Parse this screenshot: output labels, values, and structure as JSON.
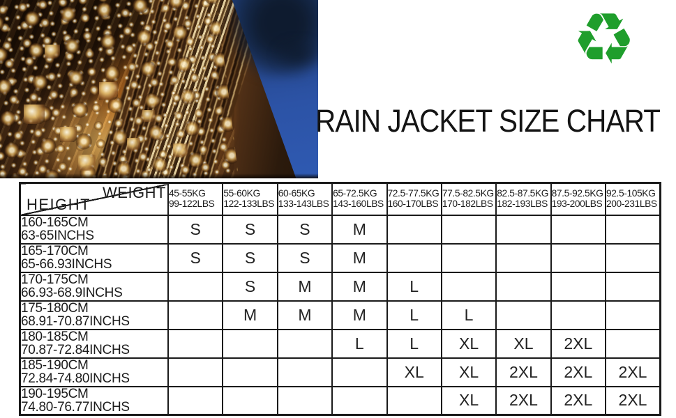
{
  "header": {
    "title": "RAIN JACKET SIZE CHART",
    "recycle_icon": {
      "glyph": "♻",
      "color": "#1f9e2c"
    }
  },
  "colors": {
    "table_border": "#1a1a1a",
    "title_text": "#141414",
    "sky_blue": "#2c53a6",
    "recycle_green": "#1f9e2c"
  },
  "chart_data": {
    "type": "table",
    "title": "RAIN JACKET SIZE CHART",
    "corner": {
      "top_right": "WEIGHT",
      "bottom_left": "HEIGHT"
    },
    "weight_columns": [
      {
        "kg": "45-55KG",
        "lbs": "99-122LBS"
      },
      {
        "kg": "55-60KG",
        "lbs": "122-133LBS"
      },
      {
        "kg": "60-65KG",
        "lbs": "133-143LBS"
      },
      {
        "kg": "65-72.5KG",
        "lbs": "143-160LBS"
      },
      {
        "kg": "72.5-77.5KG",
        "lbs": "160-170LBS"
      },
      {
        "kg": "77.5-82.5KG",
        "lbs": "170-182LBS"
      },
      {
        "kg": "82.5-87.5KG",
        "lbs": "182-193LBS"
      },
      {
        "kg": "87.5-92.5KG",
        "lbs": "193-200LBS"
      },
      {
        "kg": "92.5-105KG",
        "lbs": "200-231LBS"
      }
    ],
    "height_rows": [
      {
        "cm": "160-165CM",
        "inches": "63-65INCHS",
        "sizes": [
          "S",
          "S",
          "S",
          "M",
          "",
          "",
          "",
          "",
          ""
        ]
      },
      {
        "cm": "165-170CM",
        "inches": "65-66.93INCHS",
        "sizes": [
          "S",
          "S",
          "S",
          "M",
          "",
          "",
          "",
          "",
          ""
        ]
      },
      {
        "cm": "170-175CM",
        "inches": "66.93-68.9INCHS",
        "sizes": [
          "",
          "S",
          "M",
          "M",
          "L",
          "",
          "",
          "",
          ""
        ]
      },
      {
        "cm": "175-180CM",
        "inches": "68.91-70.87INCHS",
        "sizes": [
          "",
          "M",
          "M",
          "M",
          "L",
          "L",
          "",
          "",
          ""
        ]
      },
      {
        "cm": "180-185CM",
        "inches": "70.87-72.84INCHS",
        "sizes": [
          "",
          "",
          "",
          "L",
          "L",
          "XL",
          "XL",
          "2XL",
          ""
        ]
      },
      {
        "cm": "185-190CM",
        "inches": "72.84-74.80INCHS",
        "sizes": [
          "",
          "",
          "",
          "",
          "XL",
          "XL",
          "2XL",
          "2XL",
          "2XL"
        ]
      },
      {
        "cm": "190-195CM",
        "inches": "74.80-76.77INCHS",
        "sizes": [
          "",
          "",
          "",
          "",
          "",
          "XL",
          "2XL",
          "2XL",
          "2XL"
        ]
      }
    ]
  }
}
